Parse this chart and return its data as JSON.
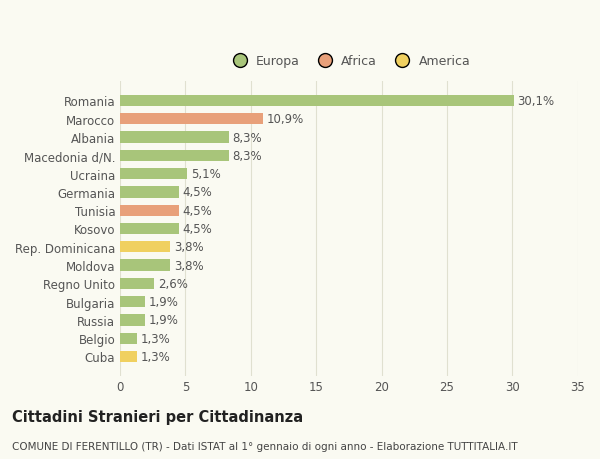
{
  "categories": [
    "Romania",
    "Marocco",
    "Albania",
    "Macedonia d/N.",
    "Ucraina",
    "Germania",
    "Tunisia",
    "Kosovo",
    "Rep. Dominicana",
    "Moldova",
    "Regno Unito",
    "Bulgaria",
    "Russia",
    "Belgio",
    "Cuba"
  ],
  "values": [
    30.1,
    10.9,
    8.3,
    8.3,
    5.1,
    4.5,
    4.5,
    4.5,
    3.8,
    3.8,
    2.6,
    1.9,
    1.9,
    1.3,
    1.3
  ],
  "labels": [
    "30,1%",
    "10,9%",
    "8,3%",
    "8,3%",
    "5,1%",
    "4,5%",
    "4,5%",
    "4,5%",
    "3,8%",
    "3,8%",
    "2,6%",
    "1,9%",
    "1,9%",
    "1,3%",
    "1,3%"
  ],
  "colors": [
    "#a8c57a",
    "#e8a07a",
    "#a8c57a",
    "#a8c57a",
    "#a8c57a",
    "#a8c57a",
    "#e8a07a",
    "#a8c57a",
    "#f0d060",
    "#a8c57a",
    "#a8c57a",
    "#a8c57a",
    "#a8c57a",
    "#a8c57a",
    "#f0d060"
  ],
  "legend_labels": [
    "Europa",
    "Africa",
    "America"
  ],
  "legend_colors": [
    "#a8c57a",
    "#e8a07a",
    "#f0d060"
  ],
  "title1": "Cittadini Stranieri per Cittadinanza",
  "title2": "COMUNE DI FERENTILLO (TR) - Dati ISTAT al 1° gennaio di ogni anno - Elaborazione TUTTITALIA.IT",
  "xlim": [
    0,
    35
  ],
  "xticks": [
    0,
    5,
    10,
    15,
    20,
    25,
    30,
    35
  ],
  "background_color": "#fafaf2",
  "grid_color": "#e0e0d0",
  "bar_height": 0.62,
  "label_fontsize": 8.5,
  "tick_fontsize": 8.5,
  "title1_fontsize": 10.5,
  "title2_fontsize": 7.5
}
